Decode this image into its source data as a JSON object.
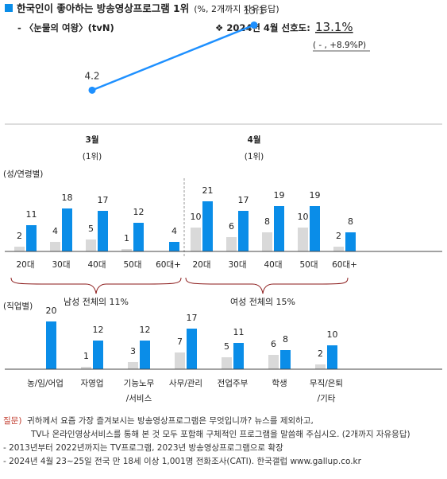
{
  "header": {
    "title": "한국인이 좋아하는 방송영상프로그램 1위",
    "title_note": "(%, 2개까지 자유응답)",
    "program": "- 〈눈물의 여왕〉(tvN)",
    "pref_label": "❖  2024년 4월 선호도:",
    "pref_value": "13.1%",
    "pref_change": "( - , +8.9%P)"
  },
  "colors": {
    "male_female_bar": "#0a8de8",
    "reference_bar": "#d9d9d9",
    "trend_line": "#1e90ff",
    "bracket": "#8b1a1a",
    "footer_tag": "#c0392b"
  },
  "chart_data": [
    {
      "type": "line",
      "categories": [
        "3월\n(1위)",
        "4월\n(1위)"
      ],
      "x_labels": [
        "3월",
        "4월"
      ],
      "x_sublabels": [
        "(1위)",
        "(1위)"
      ],
      "series": [
        {
          "values": [
            4.2,
            13.1
          ]
        }
      ],
      "ylim": [
        0,
        15
      ],
      "title": "",
      "xlabel": "",
      "ylabel": ""
    },
    {
      "type": "bar",
      "section_label": "(성/연령별)",
      "groups": [
        {
          "label": "남성 전체의 11%",
          "categories": [
            "20대",
            "30대",
            "40대",
            "50대",
            "60대+"
          ],
          "series": [
            {
              "values": [
                2,
                4,
                5,
                1,
                null
              ]
            },
            {
              "values": [
                11,
                18,
                17,
                12,
                4
              ]
            }
          ]
        },
        {
          "label": "여성 전체의 15%",
          "categories": [
            "20대",
            "30대",
            "40대",
            "50대",
            "60대+"
          ],
          "series": [
            {
              "values": [
                10,
                6,
                8,
                10,
                2
              ]
            },
            {
              "values": [
                21,
                17,
                19,
                19,
                8
              ]
            }
          ]
        }
      ],
      "ylim": [
        0,
        22
      ]
    },
    {
      "type": "bar",
      "section_label": "(직업별)",
      "categories": [
        "농/임/어업",
        "자영업",
        "기능노무\n/서비스",
        "사무/관리",
        "전업주부",
        "학생",
        "무직/은퇴\n/기타"
      ],
      "category_lines": [
        [
          "농/임/어업"
        ],
        [
          "자영업"
        ],
        [
          "기능노무",
          "/서비스"
        ],
        [
          "사무/관리"
        ],
        [
          "전업주부"
        ],
        [
          "학생"
        ],
        [
          "무직/은퇴",
          "/기타"
        ]
      ],
      "series": [
        {
          "values": [
            null,
            1,
            3,
            7,
            5,
            6,
            2
          ]
        },
        {
          "values": [
            20,
            12,
            12,
            17,
            11,
            8,
            10
          ]
        }
      ],
      "ylim": [
        0,
        22
      ]
    }
  ],
  "footer": {
    "q_tag": "질문)",
    "q_line1": "귀하께서 요즘 가장 즐겨보시는 방송영상프로그램은 무엇입니까? 뉴스를 제외하고,",
    "q_line2": "TV나 온라인영상서비스를 통해 본 것 모두 포함해 구체적인 프로그램을 말씀해 주십시오. (2개까지 자유응답)",
    "note1": "- 2013년부터 2022년까지는 TV프로그램, 2023년 방송영상프로그램으로 확장",
    "note2": "- 2024년 4월 23~25일 전국 만 18세 이상 1,001명 전화조사(CATI). 한국갤럽 www.gallup.co.kr"
  }
}
